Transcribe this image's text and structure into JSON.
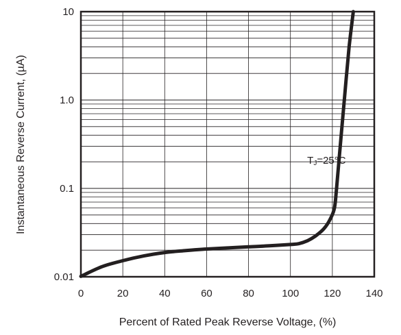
{
  "chart_data": {
    "type": "line",
    "xlabel": "Percent of Rated Peak Reverse Voltage, (%)",
    "ylabel": "Instantaneous Reverse Current, (µA)",
    "xlim": [
      0,
      140
    ],
    "ylim": [
      0.01,
      10
    ],
    "y_scale": "log",
    "grid": true,
    "x_ticks": [
      {
        "value": 0,
        "label": "0"
      },
      {
        "value": 20,
        "label": "20"
      },
      {
        "value": 40,
        "label": "40"
      },
      {
        "value": 60,
        "label": "60"
      },
      {
        "value": 80,
        "label": "80"
      },
      {
        "value": 100,
        "label": "100"
      },
      {
        "value": 120,
        "label": "120"
      },
      {
        "value": 140,
        "label": "140"
      }
    ],
    "y_ticks": [
      {
        "value": 0.01,
        "label": "0.01"
      },
      {
        "value": 0.1,
        "label": "0.1"
      },
      {
        "value": 1,
        "label": "1.0"
      },
      {
        "value": 10,
        "label": "10"
      }
    ],
    "annotation": {
      "main": "T",
      "sub": "J",
      "rest": "=25°C",
      "x": 108,
      "y": 0.19
    },
    "series": [
      {
        "x": [
          0,
          10,
          20,
          30,
          40,
          50,
          60,
          70,
          80,
          90,
          100,
          104,
          108,
          112,
          116,
          119,
          121,
          122,
          124,
          126,
          128,
          130
        ],
        "y": [
          0.0101,
          0.013,
          0.0152,
          0.0172,
          0.0188,
          0.0198,
          0.0206,
          0.0212,
          0.0218,
          0.0224,
          0.0232,
          0.0237,
          0.0255,
          0.029,
          0.035,
          0.045,
          0.06,
          0.1,
          0.35,
          1.2,
          4.0,
          10
        ]
      }
    ]
  }
}
